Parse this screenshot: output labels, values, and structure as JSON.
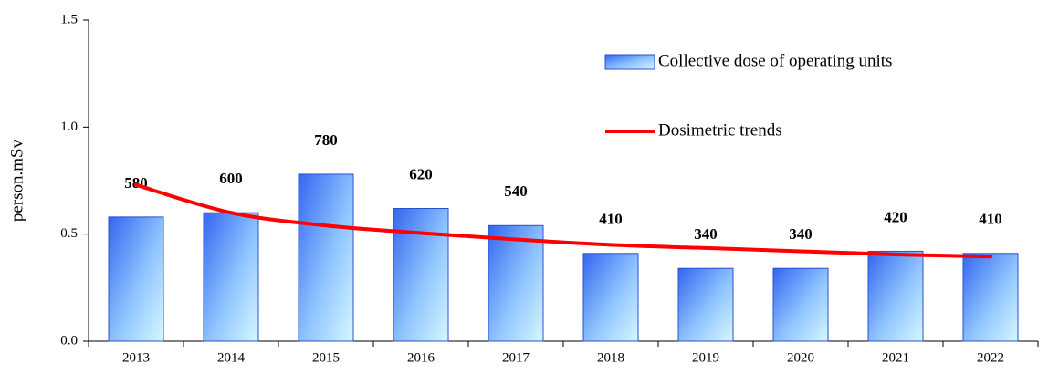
{
  "chart_data": {
    "type": "bar",
    "categories": [
      "2013",
      "2014",
      "2015",
      "2016",
      "2017",
      "2018",
      "2019",
      "2020",
      "2021",
      "2022"
    ],
    "series": [
      {
        "name": "Collective dose of operating units",
        "type": "bar",
        "color": "#3a6ef0",
        "values": [
          0.58,
          0.6,
          0.78,
          0.62,
          0.54,
          0.41,
          0.34,
          0.34,
          0.42,
          0.41
        ],
        "value_labels": [
          "580",
          "600",
          "780",
          "620",
          "540",
          "410",
          "340",
          "340",
          "420",
          "410"
        ]
      },
      {
        "name": "Dosimetric trends",
        "type": "line",
        "color": "#ff0000",
        "values": [
          0.73,
          0.6,
          0.54,
          0.505,
          0.475,
          0.45,
          0.435,
          0.42,
          0.405,
          0.395
        ]
      }
    ],
    "y_label": "person.mSv",
    "ylim": [
      0,
      1.5
    ],
    "yticks": [
      {
        "value": 0,
        "label": "0.0"
      },
      0.5,
      {
        "value": 1,
        "label": "1.0"
      },
      1.5
    ],
    "grid": false
  }
}
